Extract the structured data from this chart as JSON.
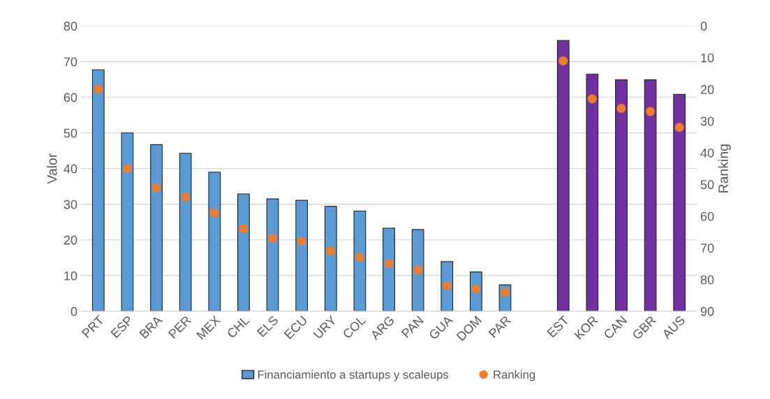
{
  "chart_data": {
    "type": "bar",
    "ylabel": "Valor",
    "y2label": "Ranking",
    "categories": [
      "PRT",
      "ESP",
      "BRA",
      "PER",
      "MEX",
      "CHL",
      "ELS",
      "ECU",
      "URY",
      "COL",
      "ARG",
      "PAN",
      "GUA",
      "DOM",
      "PAR",
      null,
      "EST",
      "KOR",
      "CAN",
      "GBR",
      "AUS"
    ],
    "series": [
      {
        "name": "Financiamiento a startups y scaleups",
        "color": "#5b9bd5",
        "colors": [
          "#5b9bd5",
          "#5b9bd5",
          "#5b9bd5",
          "#5b9bd5",
          "#5b9bd5",
          "#5b9bd5",
          "#5b9bd5",
          "#5b9bd5",
          "#5b9bd5",
          "#5b9bd5",
          "#5b9bd5",
          "#5b9bd5",
          "#5b9bd5",
          "#5b9bd5",
          "#5b9bd5",
          "#5b9bd5",
          "#7030a0",
          "#7030a0",
          "#7030a0",
          "#7030a0",
          "#7030a0"
        ],
        "values": [
          67.7,
          50,
          46.7,
          44.3,
          39,
          32.9,
          31.5,
          31.1,
          29.4,
          28.1,
          23.3,
          22.9,
          13.9,
          11,
          7.4,
          null,
          75.9,
          66.5,
          64.9,
          64.9,
          60.8
        ]
      },
      {
        "name": "Ranking",
        "type": "scatter",
        "axis": "y2",
        "color": "#ed7d31",
        "marker": "circle",
        "values": [
          20,
          45,
          51,
          54,
          59,
          64,
          67,
          68,
          71,
          73,
          75,
          77,
          82,
          83,
          84,
          null,
          11,
          23,
          26,
          27,
          32
        ]
      }
    ],
    "ylim": [
      0,
      80
    ],
    "yticks": [
      0,
      10,
      20,
      30,
      40,
      50,
      60,
      70,
      80
    ],
    "y2lim": [
      90,
      0
    ],
    "y2ticks": [
      0,
      10,
      20,
      30,
      40,
      50,
      60,
      70,
      80,
      90
    ],
    "grid": "y",
    "legend": "bottom"
  }
}
